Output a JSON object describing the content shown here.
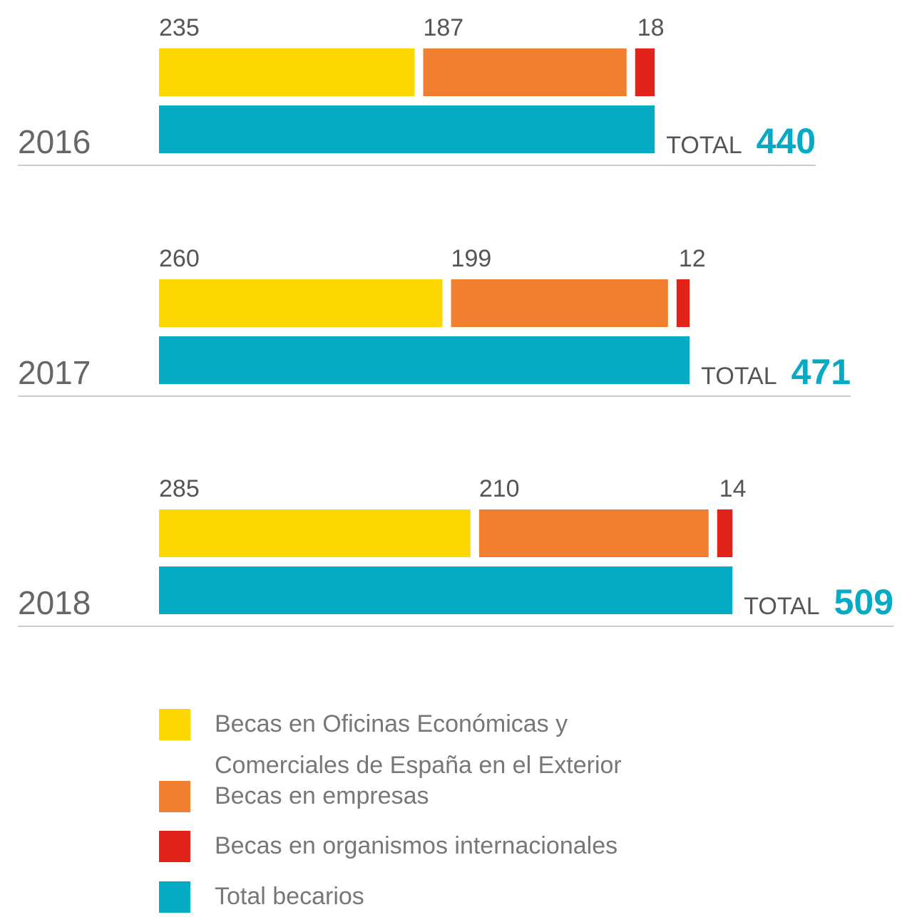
{
  "chart_data": {
    "type": "bar",
    "orientation": "horizontal",
    "categories": [
      "2016",
      "2017",
      "2018"
    ],
    "total_label": "TOTAL",
    "series": [
      {
        "name": "Becas en Oficinas Económicas y Comerciales de España en el Exterior",
        "color": "#fed700",
        "values": [
          235,
          260,
          285
        ]
      },
      {
        "name": "Becas en empresas",
        "color": "#f07f2f",
        "values": [
          187,
          199,
          210
        ]
      },
      {
        "name": "Becas en organismos internacionales",
        "color": "#e2231a",
        "values": [
          18,
          12,
          14
        ]
      },
      {
        "name": "Total becarios",
        "color": "#05abc5",
        "values": [
          440,
          471,
          509
        ]
      }
    ],
    "legend": "bottom-left"
  }
}
